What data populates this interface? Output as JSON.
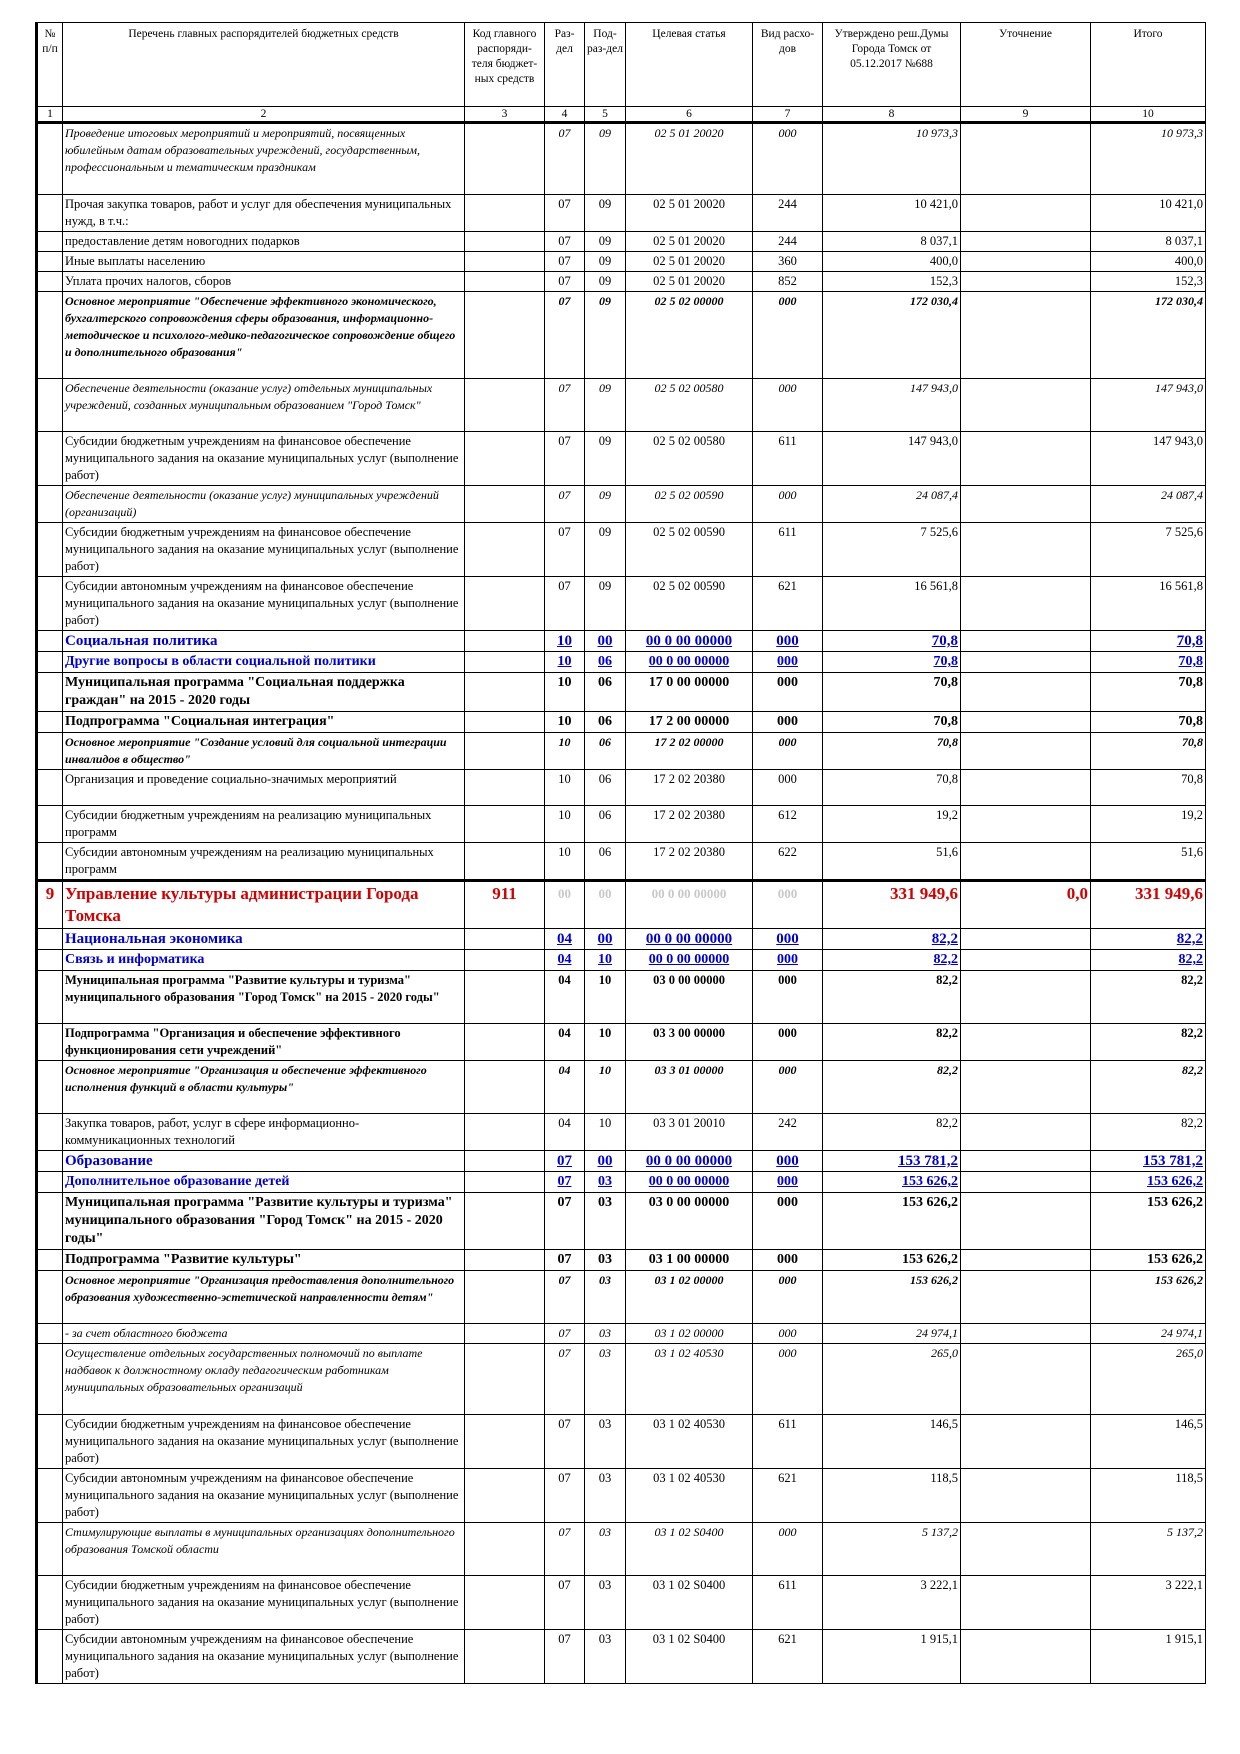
{
  "header": {
    "col1": "№ п/п",
    "col2": "Перечень главных распорядителей бюджетных средств",
    "col3": "Код главного распоряди-теля бюджет-ных средств",
    "col4": "Раз-дел",
    "col5": "Под-раз-дел",
    "col6": "Целевая статья",
    "col7": "Вид расхо-дов",
    "col8": "Утверждено реш.Думы Города Томск от 05.12.2017 №688",
    "col9": "Уточнение",
    "col10": "Итого"
  },
  "col_numbers": [
    "1",
    "2",
    "3",
    "4",
    "5",
    "6",
    "7",
    "8",
    "9",
    "10"
  ],
  "rows": [
    {
      "name": "Проведение итоговых мероприятий и мероприятий, посвященных юбилейным датам образовательных учреждений, государственным, профессиональным и тематическим праздникам",
      "razdel": "07",
      "podrazdel": "09",
      "cs": "02 5 01 20020",
      "vr": "000",
      "approved": "10 973,3",
      "change": "",
      "total": "10 973,3"
    },
    {
      "name": "Прочая закупка товаров, работ и услуг для обеспечения муниципальных нужд, в т.ч.:",
      "razdel": "07",
      "podrazdel": "09",
      "cs": "02 5 01 20020",
      "vr": "244",
      "approved": "10 421,0",
      "change": "",
      "total": "10 421,0"
    },
    {
      "name": "предоставление детям новогодних подарков",
      "razdel": "07",
      "podrazdel": "09",
      "cs": "02 5 01 20020",
      "vr": "244",
      "approved": "8 037,1",
      "change": "",
      "total": "8 037,1"
    },
    {
      "name": "Иные выплаты населению",
      "razdel": "07",
      "podrazdel": "09",
      "cs": "02 5 01 20020",
      "vr": "360",
      "approved": "400,0",
      "change": "",
      "total": "400,0"
    },
    {
      "name": "Уплата прочих налогов, сборов",
      "razdel": "07",
      "podrazdel": "09",
      "cs": "02 5 01 20020",
      "vr": "852",
      "approved": "152,3",
      "change": "",
      "total": "152,3"
    },
    {
      "name": "Основное мероприятие \"Обеспечение эффективного экономического, бухгалтерского сопровождения сферы образования, информационно-методическое и психолого-медико-педагогическое сопровождение общего и дополнительного образования\"",
      "razdel": "07",
      "podrazdel": "09",
      "cs": "02 5 02 00000",
      "vr": "000",
      "approved": "172 030,4",
      "change": "",
      "total": "172 030,4"
    },
    {
      "name": "Обеспечение деятельности (оказание услуг) отдельных муниципальных учреждений, созданных муниципальным образованием \"Город Томск\"",
      "razdel": "07",
      "podrazdel": "09",
      "cs": "02 5 02 00580",
      "vr": "000",
      "approved": "147 943,0",
      "change": "",
      "total": "147 943,0"
    },
    {
      "name": "Субсидии бюджетным учреждениям на финансовое обеспечение муниципального задания на оказание муниципальных услуг (выполнение работ)",
      "razdel": "07",
      "podrazdel": "09",
      "cs": "02 5 02 00580",
      "vr": "611",
      "approved": "147 943,0",
      "change": "",
      "total": "147 943,0"
    },
    {
      "name": "Обеспечение деятельности (оказание услуг) муниципальных учреждений (организаций)",
      "razdel": "07",
      "podrazdel": "09",
      "cs": "02 5 02 00590",
      "vr": "000",
      "approved": "24 087,4",
      "change": "",
      "total": "24 087,4"
    },
    {
      "name": "Субсидии бюджетным учреждениям на финансовое обеспечение муниципального задания на оказание муниципальных услуг (выполнение работ)",
      "razdel": "07",
      "podrazdel": "09",
      "cs": "02 5 02 00590",
      "vr": "611",
      "approved": "7 525,6",
      "change": "",
      "total": "7 525,6"
    },
    {
      "name": "Субсидии автономным учреждениям на финансовое обеспечение муниципального задания на оказание муниципальных услуг (выполнение работ)",
      "razdel": "07",
      "podrazdel": "09",
      "cs": "02 5 02 00590",
      "vr": "621",
      "approved": "16 561,8",
      "change": "",
      "total": "16 561,8"
    },
    {
      "name": "Социальная политика",
      "razdel": "10",
      "podrazdel": "00",
      "cs": "00 0 00 00000",
      "vr": "000",
      "approved": "70,8",
      "change": "",
      "total": "70,8"
    },
    {
      "name": "Другие вопросы в области социальной политики",
      "razdel": "10",
      "podrazdel": "06",
      "cs": "00 0 00 00000",
      "vr": "000",
      "approved": "70,8",
      "change": "",
      "total": "70,8"
    },
    {
      "name": "Муниципальная программа \"Социальная поддержка граждан\" на 2015 - 2020 годы",
      "razdel": "10",
      "podrazdel": "06",
      "cs": "17 0 00 00000",
      "vr": "000",
      "approved": "70,8",
      "change": "",
      "total": "70,8"
    },
    {
      "name": "Подпрограмма \"Социальная интеграция\"",
      "razdel": "10",
      "podrazdel": "06",
      "cs": "17 2 00 00000",
      "vr": "000",
      "approved": "70,8",
      "change": "",
      "total": "70,8"
    },
    {
      "name": "Основное мероприятие \"Создание условий для социальной интеграции инвалидов в общество\"",
      "razdel": "10",
      "podrazdel": "06",
      "cs": "17 2 02 00000",
      "vr": "000",
      "approved": "70,8",
      "change": "",
      "total": "70,8"
    },
    {
      "name": "Организация и проведение социально-значимых мероприятий",
      "razdel": "10",
      "podrazdel": "06",
      "cs": "17 2 02 20380",
      "vr": "000",
      "approved": "70,8",
      "change": "",
      "total": "70,8"
    },
    {
      "name": "Субсидии бюджетным учреждениям на реализацию муниципальных программ",
      "razdel": "10",
      "podrazdel": "06",
      "cs": "17 2 02 20380",
      "vr": "612",
      "approved": "19,2",
      "change": "",
      "total": "19,2"
    },
    {
      "name": "Субсидии автономным учреждениям на реализацию муниципальных программ",
      "razdel": "10",
      "podrazdel": "06",
      "cs": "17 2 02 20380",
      "vr": "622",
      "approved": "51,6",
      "change": "",
      "total": "51,6"
    },
    {
      "num": "9",
      "name": "Управление культуры администрации Города Томска",
      "code": "911",
      "razdel": "00",
      "podrazdel": "00",
      "cs": "00 0 00 00000",
      "vr": "000",
      "approved": "331 949,6",
      "change": "0,0",
      "total": "331 949,6"
    },
    {
      "name": "Национальная экономика",
      "razdel": "04",
      "podrazdel": "00",
      "cs": "00 0 00 00000",
      "vr": "000",
      "approved": "82,2",
      "change": "",
      "total": "82,2"
    },
    {
      "name": "Связь и информатика",
      "razdel": "04",
      "podrazdel": "10",
      "cs": "00 0 00 00000",
      "vr": "000",
      "approved": "82,2",
      "change": "",
      "total": "82,2"
    },
    {
      "name": "Муниципальная программа \"Развитие культуры и туризма\" муниципального образования \"Город Томск\" на 2015 - 2020 годы\"",
      "razdel": "04",
      "podrazdel": "10",
      "cs": "03 0 00 00000",
      "vr": "000",
      "approved": "82,2",
      "change": "",
      "total": "82,2"
    },
    {
      "name": "Подпрограмма \"Организация и обеспечение эффективного функционирования сети учреждений\"",
      "razdel": "04",
      "podrazdel": "10",
      "cs": "03 3 00 00000",
      "vr": "000",
      "approved": "82,2",
      "change": "",
      "total": "82,2"
    },
    {
      "name": "Основное мероприятие \"Организация и обеспечение эффективного исполнения функций в области культуры\"",
      "razdel": "04",
      "podrazdel": "10",
      "cs": "03 3 01 00000",
      "vr": "000",
      "approved": "82,2",
      "change": "",
      "total": "82,2"
    },
    {
      "name": "Закупка товаров, работ, услуг в сфере информационно-коммуникационных технологий",
      "razdel": "04",
      "podrazdel": "10",
      "cs": "03 3 01 20010",
      "vr": "242",
      "approved": "82,2",
      "change": "",
      "total": "82,2"
    },
    {
      "name": "Образование",
      "razdel": "07",
      "podrazdel": "00",
      "cs": "00 0 00 00000",
      "vr": "000",
      "approved": "153 781,2",
      "change": "",
      "total": "153 781,2"
    },
    {
      "name": "Дополнительное образование детей",
      "razdel": "07",
      "podrazdel": "03",
      "cs": "00 0 00 00000",
      "vr": "000",
      "approved": "153 626,2",
      "change": "",
      "total": "153 626,2"
    },
    {
      "name": "Муниципальная программа \"Развитие культуры и туризма\" муниципального образования \"Город Томск\" на 2015 - 2020 годы\"",
      "razdel": "07",
      "podrazdel": "03",
      "cs": "03 0 00 00000",
      "vr": "000",
      "approved": "153 626,2",
      "change": "",
      "total": "153 626,2"
    },
    {
      "name": "Подпрограмма \"Развитие культуры\"",
      "razdel": "07",
      "podrazdel": "03",
      "cs": "03 1 00 00000",
      "vr": "000",
      "approved": "153 626,2",
      "change": "",
      "total": "153 626,2"
    },
    {
      "name": "Основное мероприятие \"Организация предоставления дополнительного образования художественно-эстетической направленности детям\"",
      "razdel": "07",
      "podrazdel": "03",
      "cs": "03 1 02 00000",
      "vr": "000",
      "approved": "153 626,2",
      "change": "",
      "total": "153 626,2"
    },
    {
      "name": "- за счет областного бюджета",
      "razdel": "07",
      "podrazdel": "03",
      "cs": "03 1 02 00000",
      "vr": "000",
      "approved": "24 974,1",
      "change": "",
      "total": "24 974,1"
    },
    {
      "name": "Осуществление отдельных государственных полномочий по выплате надбавок к должностному окладу педагогическим работникам муниципальных образовательных организаций",
      "razdel": "07",
      "podrazdel": "03",
      "cs": "03 1 02 40530",
      "vr": "000",
      "approved": "265,0",
      "change": "",
      "total": "265,0"
    },
    {
      "name": "Субсидии бюджетным учреждениям на финансовое обеспечение муниципального задания на оказание муниципальных услуг (выполнение работ)",
      "razdel": "07",
      "podrazdel": "03",
      "cs": "03 1 02 40530",
      "vr": "611",
      "approved": "146,5",
      "change": "",
      "total": "146,5"
    },
    {
      "name": "Субсидии автономным учреждениям на финансовое обеспечение муниципального задания на оказание муниципальных услуг (выполнение работ)",
      "razdel": "07",
      "podrazdel": "03",
      "cs": "03 1 02 40530",
      "vr": "621",
      "approved": "118,5",
      "change": "",
      "total": "118,5"
    },
    {
      "name": "Стимулирующие выплаты в муниципальных организациях дополнительного образования Томской области",
      "razdel": "07",
      "podrazdel": "03",
      "cs": "03 1 02 S0400",
      "vr": "000",
      "approved": "5 137,2",
      "change": "",
      "total": "5 137,2"
    },
    {
      "name": "Субсидии бюджетным учреждениям на финансовое обеспечение муниципального задания на оказание муниципальных услуг (выполнение работ)",
      "razdel": "07",
      "podrazdel": "03",
      "cs": "03 1 02 S0400",
      "vr": "611",
      "approved": "3 222,1",
      "change": "",
      "total": "3 222,1"
    },
    {
      "name": "Субсидии автономным учреждениям на финансовое обеспечение муниципального задания на оказание муниципальных услуг (выполнение работ)",
      "razdel": "07",
      "podrazdel": "03",
      "cs": "03 1 02 S0400",
      "vr": "621",
      "approved": "1 915,1",
      "change": "",
      "total": "1 915,1"
    }
  ]
}
